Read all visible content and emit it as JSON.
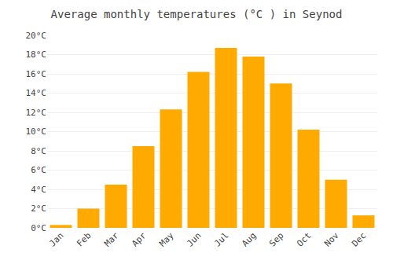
{
  "chart_data": {
    "type": "bar",
    "title": "Average monthly temperatures (°C ) in Seynod",
    "categories": [
      "Jan",
      "Feb",
      "Mar",
      "Apr",
      "May",
      "Jun",
      "Jul",
      "Aug",
      "Sep",
      "Oct",
      "Nov",
      "Dec"
    ],
    "values": [
      0.3,
      2.0,
      4.5,
      8.5,
      12.3,
      16.2,
      18.7,
      17.8,
      15.0,
      10.2,
      5.0,
      1.3
    ],
    "color": "#FFAA00",
    "ylim": [
      0,
      20
    ],
    "yticks": [
      {
        "value": 0,
        "label": "0°C"
      },
      {
        "value": 2,
        "label": "2°C"
      },
      {
        "value": 4,
        "label": "4°C"
      },
      {
        "value": 6,
        "label": "6°C"
      },
      {
        "value": 8,
        "label": "8°C"
      },
      {
        "value": 10,
        "label": "10°C"
      },
      {
        "value": 12,
        "label": "12°C"
      },
      {
        "value": 14,
        "label": "14°C"
      },
      {
        "value": 16,
        "label": "16°C"
      },
      {
        "value": 18,
        "label": "18°C"
      },
      {
        "value": 20,
        "label": "20°C"
      }
    ],
    "grid": true
  }
}
